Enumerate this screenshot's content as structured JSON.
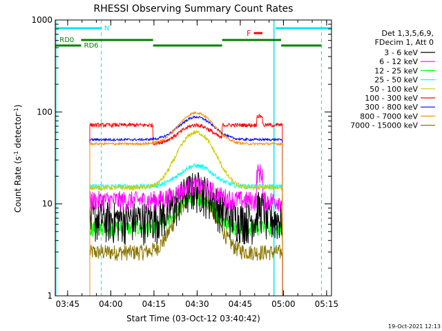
{
  "chart_data": {
    "type": "line",
    "title": "RHESSI Observing Summary Count Rates",
    "xlabel": "Start Time (03-Oct-12 03:40:42)",
    "ylabel_main": "Count Rate (s",
    "ylabel_sup1": "-1",
    "ylabel_mid": " detector",
    "ylabel_sup2": "-1",
    "ylabel_end": ")",
    "x_range_minutes": [
      0,
      96
    ],
    "ylim": [
      1,
      1000
    ],
    "y_scale": "log",
    "x_ticks": [
      {
        "label": "03:45",
        "min": 4.3
      },
      {
        "label": "04:00",
        "min": 19.3
      },
      {
        "label": "04:15",
        "min": 34.3
      },
      {
        "label": "04:30",
        "min": 49.3
      },
      {
        "label": "04:45",
        "min": 64.3
      },
      {
        "label": "05:00",
        "min": 79.3
      },
      {
        "label": "05:15",
        "min": 94.3
      }
    ],
    "y_ticks": [
      {
        "label": "1",
        "value": 1
      },
      {
        "label": "10",
        "value": 10
      },
      {
        "label": "100",
        "value": 100
      },
      {
        "label": "1000",
        "value": 1000
      }
    ],
    "legend_header": [
      "Det 1,3,5,6,9,",
      "FDecim 1, Att 0"
    ],
    "series": [
      {
        "name": "3 - 6 keV",
        "color": "#000000",
        "baseline": 7,
        "peak": 15,
        "noise": 0.5
      },
      {
        "name": "6 - 12 keV",
        "color": "#ff00ff",
        "baseline": 11,
        "peak": 16,
        "noise": 0.25
      },
      {
        "name": "12 - 25 keV",
        "color": "#00ff00",
        "baseline": 5.5,
        "peak": 12,
        "noise": 0.2
      },
      {
        "name": "25 - 50 keV",
        "color": "#00ffff",
        "baseline": 15.5,
        "peak": 26,
        "noise": 0.06
      },
      {
        "name": "50 - 100 keV",
        "color": "#cccc00",
        "baseline": 15,
        "peak": 60,
        "noise": 0.06
      },
      {
        "name": "100 - 300 keV",
        "color": "#ff0000",
        "baseline": 72,
        "peak": 72,
        "noise": 0.05
      },
      {
        "name": "300 - 800 keV",
        "color": "#0000ff",
        "baseline": 50,
        "peak": 88,
        "noise": 0.03
      },
      {
        "name": "800 - 7000 keV",
        "color": "#ff8c00",
        "baseline": 45,
        "peak": 98,
        "noise": 0.03
      },
      {
        "name": "7000 - 15000 keV",
        "color": "#8b7500",
        "baseline": 3,
        "peak": 13,
        "noise": 0.2
      }
    ],
    "annotations": {
      "night_label": "N",
      "flare_label": "F",
      "rd0_label": "RD0",
      "rd6_label": "RD6",
      "timestamp": "19-Oct-2021 12:13"
    }
  }
}
